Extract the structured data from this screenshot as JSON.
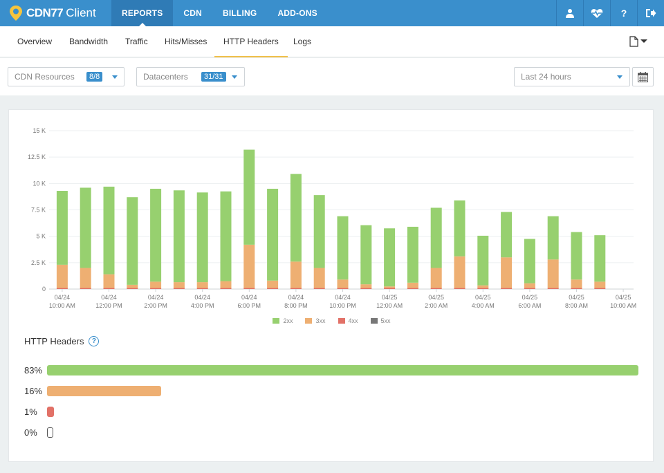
{
  "app": {
    "brand_bold": "CDN77",
    "brand_rest": "Client"
  },
  "topnav": {
    "items": [
      {
        "label": "REPORTS",
        "active": true
      },
      {
        "label": "CDN",
        "active": false
      },
      {
        "label": "BILLING",
        "active": false
      },
      {
        "label": "ADD-ONS",
        "active": false
      }
    ],
    "icons": [
      "user-icon",
      "heartbeat-icon",
      "help-icon",
      "logout-icon"
    ]
  },
  "subtabs": {
    "items": [
      {
        "label": "Overview",
        "active": false
      },
      {
        "label": "Bandwidth",
        "active": false
      },
      {
        "label": "Traffic",
        "active": false
      },
      {
        "label": "Hits/Misses",
        "active": false
      },
      {
        "label": "HTTP Headers",
        "active": true
      },
      {
        "label": "Logs",
        "active": false
      }
    ],
    "export_icon": "file-export-icon"
  },
  "filters": {
    "resources": {
      "label": "CDN Resources",
      "badge": "8/8"
    },
    "datacenters": {
      "label": "Datacenters",
      "badge": "31/31"
    },
    "period": {
      "label": "Last 24 hours"
    },
    "calendar_icon": "calendar-icon"
  },
  "colors": {
    "accent": "#3a8fcc",
    "2xx": "#97d06f",
    "3xx": "#eeaf72",
    "4xx": "#e27167",
    "5xx": "#777777"
  },
  "chart_data": {
    "type": "bar",
    "stacked": true,
    "ylim": [
      0,
      15000
    ],
    "y_ticks": [
      "0",
      "2.5 K",
      "5 K",
      "7.5 K",
      "10 K",
      "12.5 K",
      "15 K"
    ],
    "x_ticks": [
      [
        "04/24",
        "10:00 AM"
      ],
      [
        "04/24",
        "12:00 PM"
      ],
      [
        "04/24",
        "2:00 PM"
      ],
      [
        "04/24",
        "4:00 PM"
      ],
      [
        "04/24",
        "6:00 PM"
      ],
      [
        "04/24",
        "8:00 PM"
      ],
      [
        "04/24",
        "10:00 PM"
      ],
      [
        "04/25",
        "12:00 AM"
      ],
      [
        "04/25",
        "2:00 AM"
      ],
      [
        "04/25",
        "4:00 AM"
      ],
      [
        "04/25",
        "6:00 AM"
      ],
      [
        "04/25",
        "8:00 AM"
      ],
      [
        "04/25",
        "10:00 AM"
      ]
    ],
    "series": [
      {
        "name": "2xx",
        "values": [
          7000,
          7600,
          8300,
          8300,
          8800,
          8700,
          8500,
          8500,
          9000,
          8700,
          8300,
          6900,
          6000,
          5600,
          5500,
          5300,
          5700,
          5300,
          4700,
          4300,
          4200,
          4100,
          4500,
          4400
        ]
      },
      {
        "name": "3xx",
        "values": [
          2200,
          1900,
          1300,
          300,
          600,
          550,
          550,
          650,
          4100,
          700,
          2500,
          1900,
          800,
          350,
          150,
          500,
          1900,
          3000,
          250,
          2900,
          450,
          2700,
          800,
          600
        ]
      },
      {
        "name": "4xx",
        "values": [
          100,
          100,
          100,
          100,
          100,
          100,
          100,
          100,
          100,
          100,
          100,
          100,
          100,
          100,
          100,
          100,
          100,
          100,
          100,
          100,
          100,
          100,
          100,
          100
        ]
      },
      {
        "name": "5xx",
        "values": [
          0,
          0,
          0,
          0,
          0,
          0,
          0,
          0,
          0,
          0,
          0,
          0,
          0,
          0,
          0,
          0,
          0,
          0,
          0,
          0,
          0,
          0,
          0,
          0
        ]
      }
    ],
    "legend": [
      "2xx",
      "3xx",
      "4xx",
      "5xx"
    ],
    "legend_position": "bottom-center",
    "grid": true
  },
  "http_headers": {
    "title": "HTTP Headers",
    "rows": [
      {
        "label": "83%",
        "fraction": 1.0,
        "color": "#97d06f"
      },
      {
        "label": "16%",
        "fraction": 0.193,
        "color": "#eeaf72"
      },
      {
        "label": "1%",
        "fraction": 0.012,
        "color": "#e27167"
      },
      {
        "label": "0%",
        "fraction": 0.0,
        "color": "#ffffff"
      }
    ]
  }
}
